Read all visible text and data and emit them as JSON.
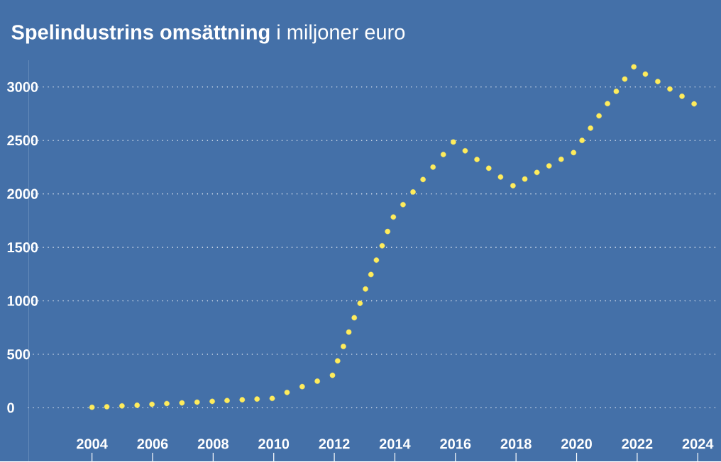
{
  "chart_data": {
    "type": "scatter",
    "title": "**Spelindustrins omsättning** i miljoner euro",
    "x": [
      2004.0,
      2004.49,
      2004.99,
      2005.49,
      2005.98,
      2006.47,
      2006.97,
      2007.47,
      2007.97,
      2008.46,
      2008.96,
      2009.45,
      2009.95,
      2010.44,
      2010.94,
      2011.44,
      2011.94,
      2012.11,
      2012.3,
      2012.48,
      2012.66,
      2012.85,
      2013.03,
      2013.21,
      2013.39,
      2013.58,
      2013.76,
      2013.95,
      2014.27,
      2014.6,
      2014.93,
      2015.26,
      2015.6,
      2015.93,
      2016.32,
      2016.71,
      2017.1,
      2017.49,
      2017.9,
      2018.29,
      2018.69,
      2019.09,
      2019.49,
      2019.9,
      2020.18,
      2020.46,
      2020.74,
      2021.02,
      2021.31,
      2021.59,
      2021.89,
      2022.27,
      2022.68,
      2023.08,
      2023.48,
      2023.88
    ],
    "values": [
      5,
      10,
      18,
      24,
      33,
      40,
      46,
      53,
      60,
      68,
      75,
      82,
      88,
      144,
      198,
      249,
      304,
      439,
      574,
      708,
      842,
      977,
      1111,
      1246,
      1381,
      1515,
      1649,
      1784,
      1900,
      2018,
      2135,
      2251,
      2368,
      2485,
      2403,
      2322,
      2240,
      2158,
      2077,
      2139,
      2201,
      2262,
      2324,
      2386,
      2500,
      2615,
      2730,
      2844,
      2959,
      3074,
      3188,
      3120,
      3051,
      2981,
      2913,
      2842
    ],
    "color": "#ffec5c",
    "marker": "circle",
    "grid": "y",
    "xlim": [
      2001.9,
      2024.58
    ],
    "xticks": [
      2004,
      2006,
      2008,
      2010,
      2012,
      2014,
      2016,
      2018,
      2020,
      2022,
      2024
    ],
    "ylim": [
      -500,
      3250
    ],
    "yticks": [
      0,
      500,
      1000,
      1500,
      2000,
      2500,
      3000
    ]
  }
}
